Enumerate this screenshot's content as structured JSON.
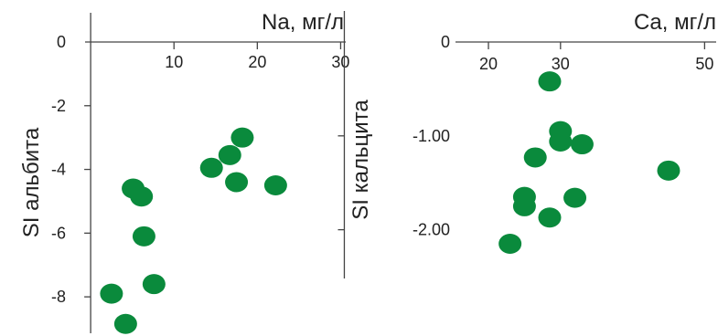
{
  "chart_data": [
    {
      "type": "scatter",
      "title": "",
      "xlabel": "Na, мг/л",
      "ylabel": "SI альбита",
      "xlim": [
        -10,
        35
      ],
      "ylim": [
        -9,
        0
      ],
      "x_ticks": [
        10,
        20,
        30
      ],
      "y_ticks": [
        0,
        -2,
        -4,
        -6,
        -8
      ],
      "x_tick_labels": [
        "10",
        "20",
        "30"
      ],
      "y_tick_labels": [
        "0",
        "-2",
        "-4",
        "-6",
        "-8"
      ],
      "grid": false,
      "color": "#0a8a3c",
      "points": [
        {
          "x": 5.1,
          "y": -4.6
        },
        {
          "x": 6.1,
          "y": -4.85
        },
        {
          "x": 6.4,
          "y": -6.1
        },
        {
          "x": 7.6,
          "y": -7.6
        },
        {
          "x": 2.5,
          "y": -7.9
        },
        {
          "x": 4.2,
          "y": -8.85
        },
        {
          "x": 14.5,
          "y": -3.95
        },
        {
          "x": 16.7,
          "y": -3.55
        },
        {
          "x": 18.2,
          "y": -3.0
        },
        {
          "x": 17.5,
          "y": -4.4
        },
        {
          "x": 22.2,
          "y": -4.5
        }
      ]
    },
    {
      "type": "scatter",
      "title": "",
      "xlabel": "Ca, мг/л",
      "ylabel": "SI кальцита",
      "xlim": [
        12,
        53
      ],
      "ylim": [
        -2.5,
        0
      ],
      "x_ticks": [
        20,
        30,
        50
      ],
      "y_ticks": [
        0,
        -1.0,
        -2.0
      ],
      "x_tick_labels": [
        "20",
        "30",
        "50"
      ],
      "y_tick_labels": [
        "0",
        "-1.00",
        "-2.00"
      ],
      "grid": false,
      "color": "#0a8a3c",
      "points": [
        {
          "x": 28.5,
          "y": -0.42
        },
        {
          "x": 30.0,
          "y": -0.95
        },
        {
          "x": 30.0,
          "y": -1.06
        },
        {
          "x": 33.0,
          "y": -1.09
        },
        {
          "x": 26.5,
          "y": -1.23
        },
        {
          "x": 45.0,
          "y": -1.37
        },
        {
          "x": 25.0,
          "y": -1.65
        },
        {
          "x": 25.0,
          "y": -1.75
        },
        {
          "x": 32.0,
          "y": -1.66
        },
        {
          "x": 28.5,
          "y": -1.87
        },
        {
          "x": 23.0,
          "y": -2.15
        }
      ]
    }
  ]
}
